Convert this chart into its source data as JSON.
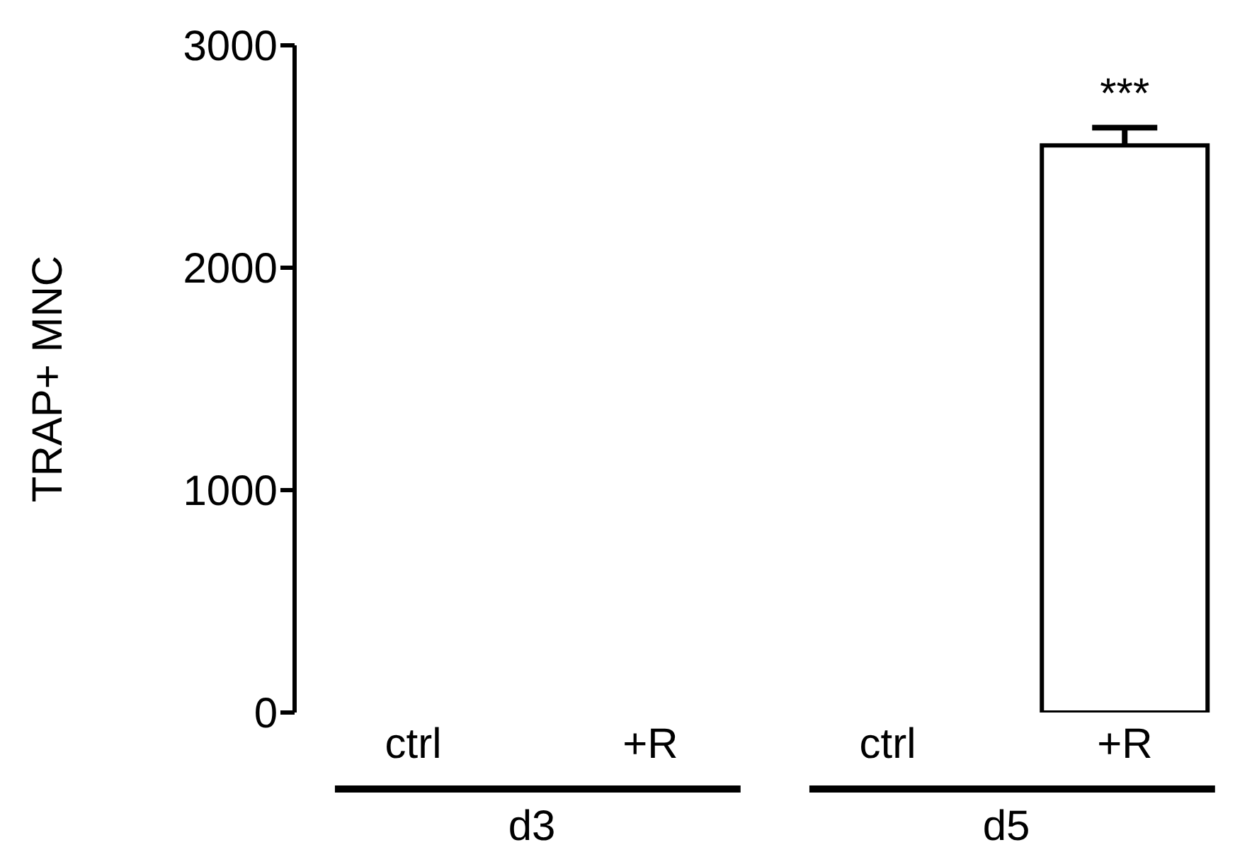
{
  "chart_data": {
    "type": "bar",
    "ylabel": "TRAP+ MNC",
    "categories": [
      "ctrl",
      "+R",
      "ctrl",
      "+R"
    ],
    "values": [
      0,
      0,
      0,
      2550
    ],
    "errors": [
      null,
      null,
      null,
      [
        2550,
        2630
      ]
    ],
    "color": "#ffffff",
    "ylim": [
      0,
      3000
    ],
    "yticks": [
      0,
      1000,
      2000,
      3000
    ],
    "annotations": [
      "***",
      "d3",
      "d5"
    ]
  }
}
